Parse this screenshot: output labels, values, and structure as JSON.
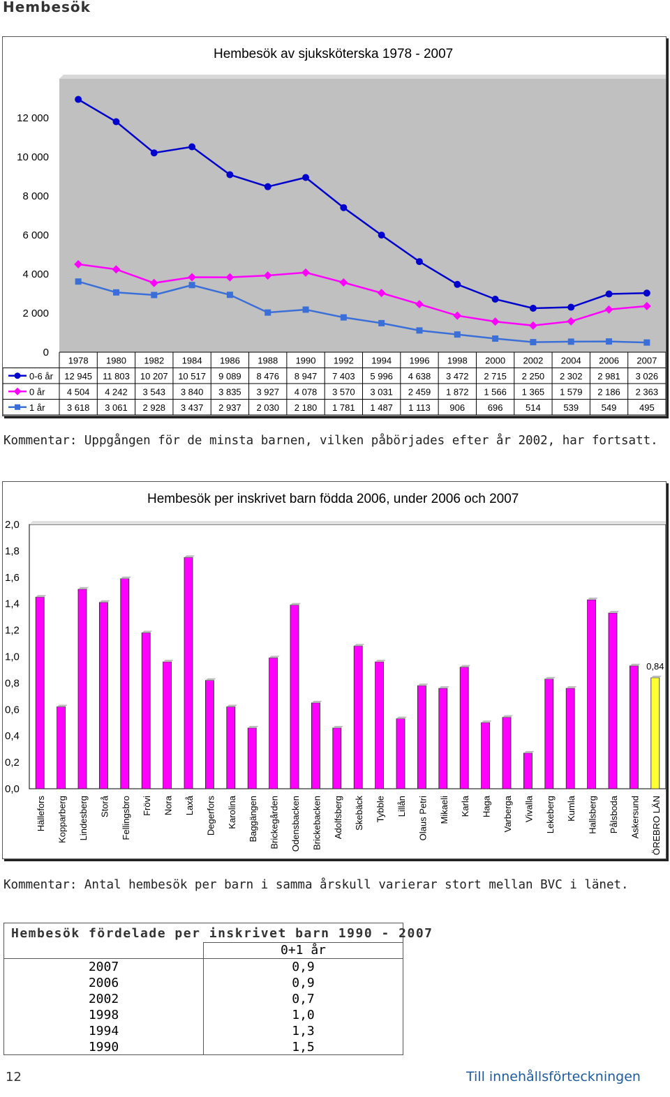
{
  "page": {
    "heading": "Hembesök",
    "comment1": "Kommentar: Uppgången för de minsta barnen, vilken påbörjades efter år 2002, har fortsatt.",
    "comment2": "Kommentar: Antal hembesök per barn i samma årskull varierar stort mellan BVC i länet.",
    "page_number": "12",
    "toc_link": "Till innehållsförteckningen"
  },
  "chart_data": [
    {
      "type": "line",
      "title": "Hembesök av sjuksköterska 1978 - 2007",
      "x": [
        "1978",
        "1980",
        "1982",
        "1984",
        "1986",
        "1988",
        "1990",
        "1992",
        "1994",
        "1996",
        "1998",
        "2000",
        "2002",
        "2004",
        "2006",
        "2007"
      ],
      "ylim": [
        0,
        14000
      ],
      "yticks": [
        "0",
        "2 000",
        "4 000",
        "6 000",
        "8 000",
        "10 000",
        "12 000"
      ],
      "grid": false,
      "legend": "data-table",
      "series": [
        {
          "name": "0-6 år",
          "color": "#0000cc",
          "marker": "circle",
          "values": [
            12945,
            11803,
            10207,
            10517,
            9089,
            8476,
            8947,
            7403,
            5996,
            4638,
            3472,
            2715,
            2250,
            2302,
            2981,
            3026
          ],
          "labels": [
            "12 945",
            "11 803",
            "10 207",
            "10 517",
            "9 089",
            "8 476",
            "8 947",
            "7 403",
            "5 996",
            "4 638",
            "3 472",
            "2 715",
            "2 250",
            "2 302",
            "2 981",
            "3 026"
          ]
        },
        {
          "name": "0 år",
          "color": "#ff00ff",
          "marker": "diamond",
          "values": [
            4504,
            4242,
            3543,
            3840,
            3835,
            3927,
            4078,
            3570,
            3031,
            2459,
            1872,
            1566,
            1365,
            1579,
            2186,
            2363
          ],
          "labels": [
            "4 504",
            "4 242",
            "3 543",
            "3 840",
            "3 835",
            "3 927",
            "4 078",
            "3 570",
            "3 031",
            "2 459",
            "1 872",
            "1 566",
            "1 365",
            "1 579",
            "2 186",
            "2 363"
          ]
        },
        {
          "name": "1 år",
          "color": "#3b6fd8",
          "marker": "square",
          "values": [
            3618,
            3061,
            2928,
            3437,
            2937,
            2030,
            2180,
            1781,
            1487,
            1113,
            906,
            696,
            514,
            539,
            549,
            495
          ],
          "labels": [
            "3 618",
            "3 061",
            "2 928",
            "3 437",
            "2 937",
            "2 030",
            "2 180",
            "1 781",
            "1 487",
            "1 113",
            "906",
            "696",
            "514",
            "539",
            "549",
            "495"
          ]
        }
      ]
    },
    {
      "type": "bar",
      "title": "Hembesök per inskrivet barn födda 2006, under 2006 och 2007",
      "categories": [
        "Hällefors",
        "Kopparberg",
        "Lindesberg",
        "Storå",
        "Fellingsbro",
        "Frövi",
        "Nora",
        "Laxå",
        "Degerfors",
        "Karolina",
        "Baggängen",
        "Brickegården",
        "Odensbacken",
        "Brickebacken",
        "Adolfsberg",
        "Skebäck",
        "Tybble",
        "Lillån",
        "Olaus Petri",
        "Mikaeli",
        "Karla",
        "Haga",
        "Varberga",
        "Vivalla",
        "Lekeberg",
        "Kumla",
        "Hallsberg",
        "Pålsboda",
        "Askersund",
        "ÖREBRO LÄN"
      ],
      "values": [
        1.45,
        0.62,
        1.51,
        1.41,
        1.59,
        1.18,
        0.96,
        1.75,
        0.82,
        0.62,
        0.46,
        0.99,
        1.39,
        0.65,
        0.46,
        1.08,
        0.96,
        0.53,
        0.78,
        0.76,
        0.92,
        0.5,
        0.54,
        0.27,
        0.83,
        0.76,
        1.43,
        1.33,
        0.93,
        0.84
      ],
      "ylim": [
        0,
        2.0
      ],
      "yticks": [
        "0,0",
        "0,2",
        "0,4",
        "0,6",
        "0,8",
        "1,0",
        "1,2",
        "1,4",
        "1,6",
        "1,8",
        "2,0"
      ],
      "colors": {
        "bars": "#ff00ff",
        "highlight": "#ffff33"
      },
      "highlight_label": "0,84"
    }
  ],
  "dist_table": {
    "title": "Hembesök fördelade per inskrivet barn 1990 - 2007",
    "column_header": "0+1 år",
    "rows": [
      {
        "year": "2007",
        "value": "0,9"
      },
      {
        "year": "2006",
        "value": "0,9"
      },
      {
        "year": "2002",
        "value": "0,7"
      },
      {
        "year": "1998",
        "value": "1,0"
      },
      {
        "year": "1994",
        "value": "1,3"
      },
      {
        "year": "1990",
        "value": "1,5"
      }
    ]
  }
}
